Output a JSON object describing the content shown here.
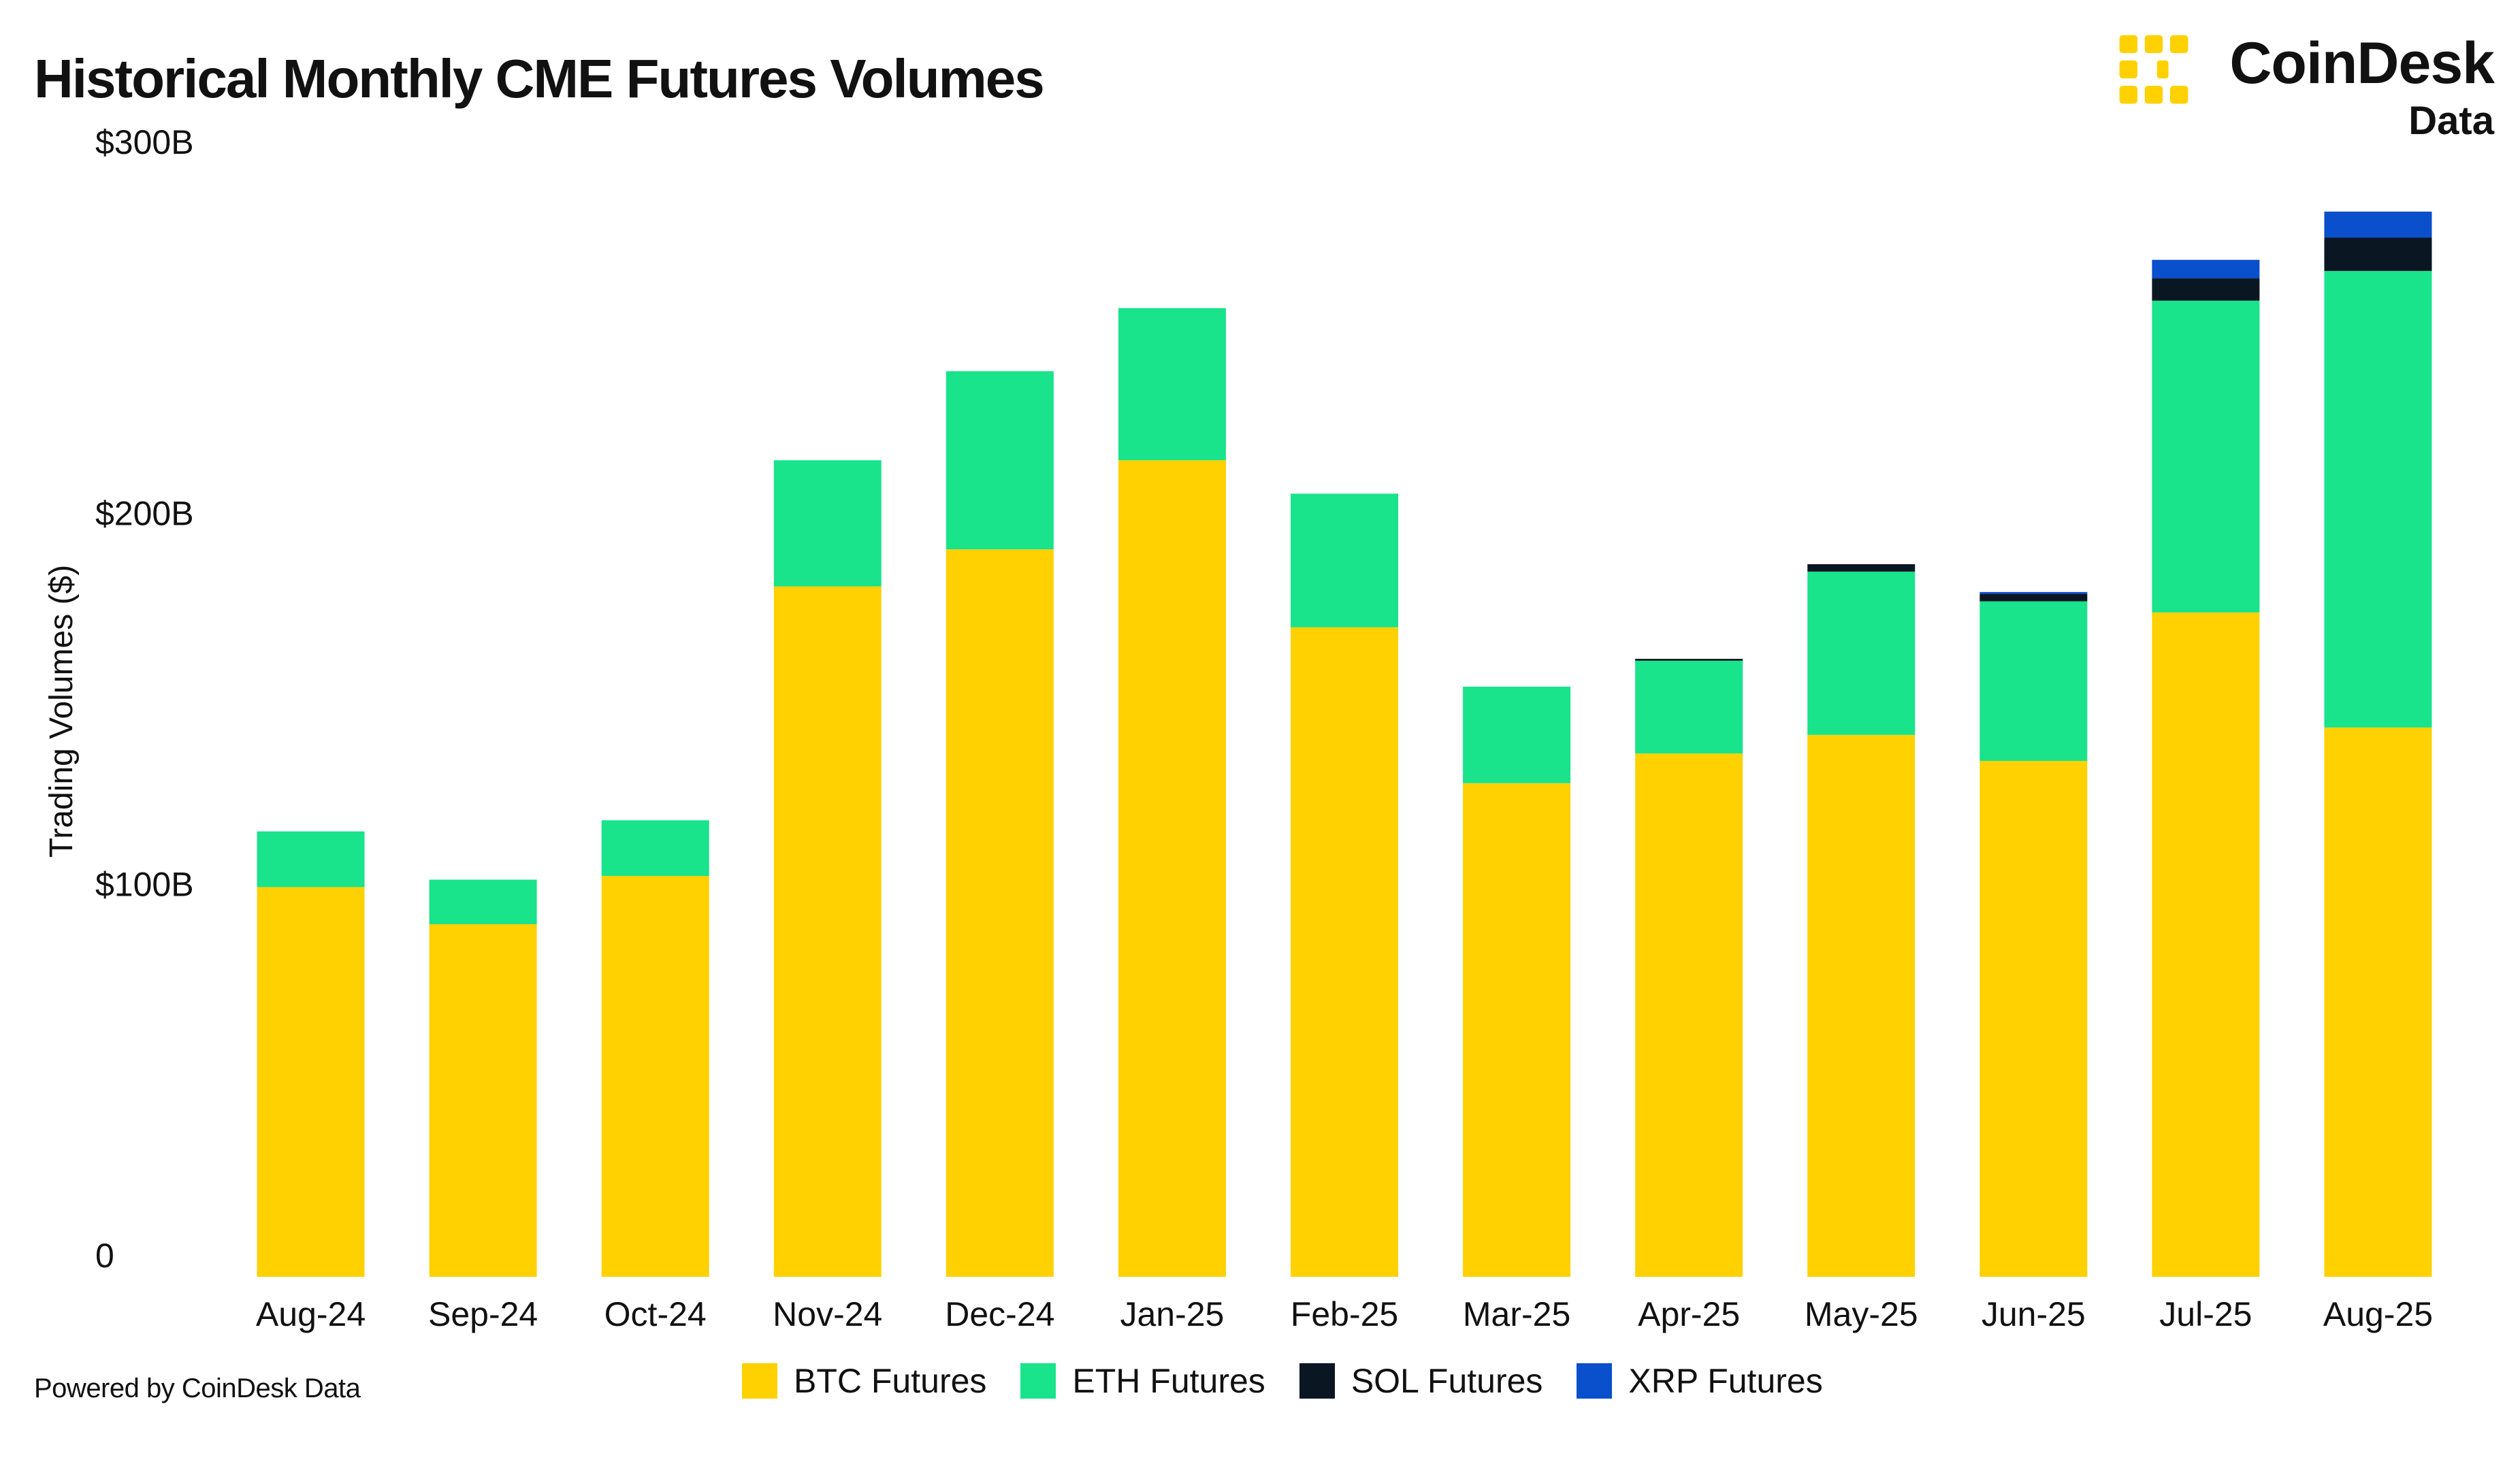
{
  "title": "Historical Monthly CME Futures Volumes",
  "brand": {
    "name": "CoinDesk",
    "sub": "Data",
    "icon": "coindesk-logo-mark",
    "color": "#FFD100"
  },
  "footer": "Powered by CoinDesk Data",
  "chart_data": {
    "type": "bar",
    "stacked": true,
    "title": "Historical Monthly CME Futures Volumes",
    "xlabel": "",
    "ylabel": "Trading Volumes ($)",
    "ylim": [
      0,
      300
    ],
    "yticks": [
      0,
      100,
      200,
      300
    ],
    "ytick_labels": [
      "0",
      "$100B",
      "$200B",
      "$300B"
    ],
    "grid": false,
    "legend_position": "bottom",
    "categories": [
      "Aug-24",
      "Sep-24",
      "Oct-24",
      "Nov-24",
      "Dec-24",
      "Jan-25",
      "Feb-25",
      "Mar-25",
      "Apr-25",
      "May-25",
      "Jun-25",
      "Jul-25",
      "Aug-25"
    ],
    "series": [
      {
        "name": "BTC Futures",
        "color": "#FFD100",
        "values": [
          105,
          95,
          108,
          186,
          196,
          220,
          175,
          133,
          141,
          146,
          139,
          179,
          148
        ]
      },
      {
        "name": "ETH Futures",
        "color": "#19E38B",
        "values": [
          15,
          12,
          15,
          34,
          48,
          41,
          36,
          26,
          25,
          44,
          43,
          84,
          123
        ]
      },
      {
        "name": "SOL Futures",
        "color": "#0B1623",
        "values": [
          0,
          0,
          0,
          0,
          0,
          0,
          0,
          0,
          0.5,
          2,
          2,
          6,
          9
        ]
      },
      {
        "name": "XRP Futures",
        "color": "#0A4FCB",
        "values": [
          0,
          0,
          0,
          0,
          0,
          0,
          0,
          0,
          0,
          0,
          0.5,
          5,
          7
        ]
      }
    ]
  }
}
